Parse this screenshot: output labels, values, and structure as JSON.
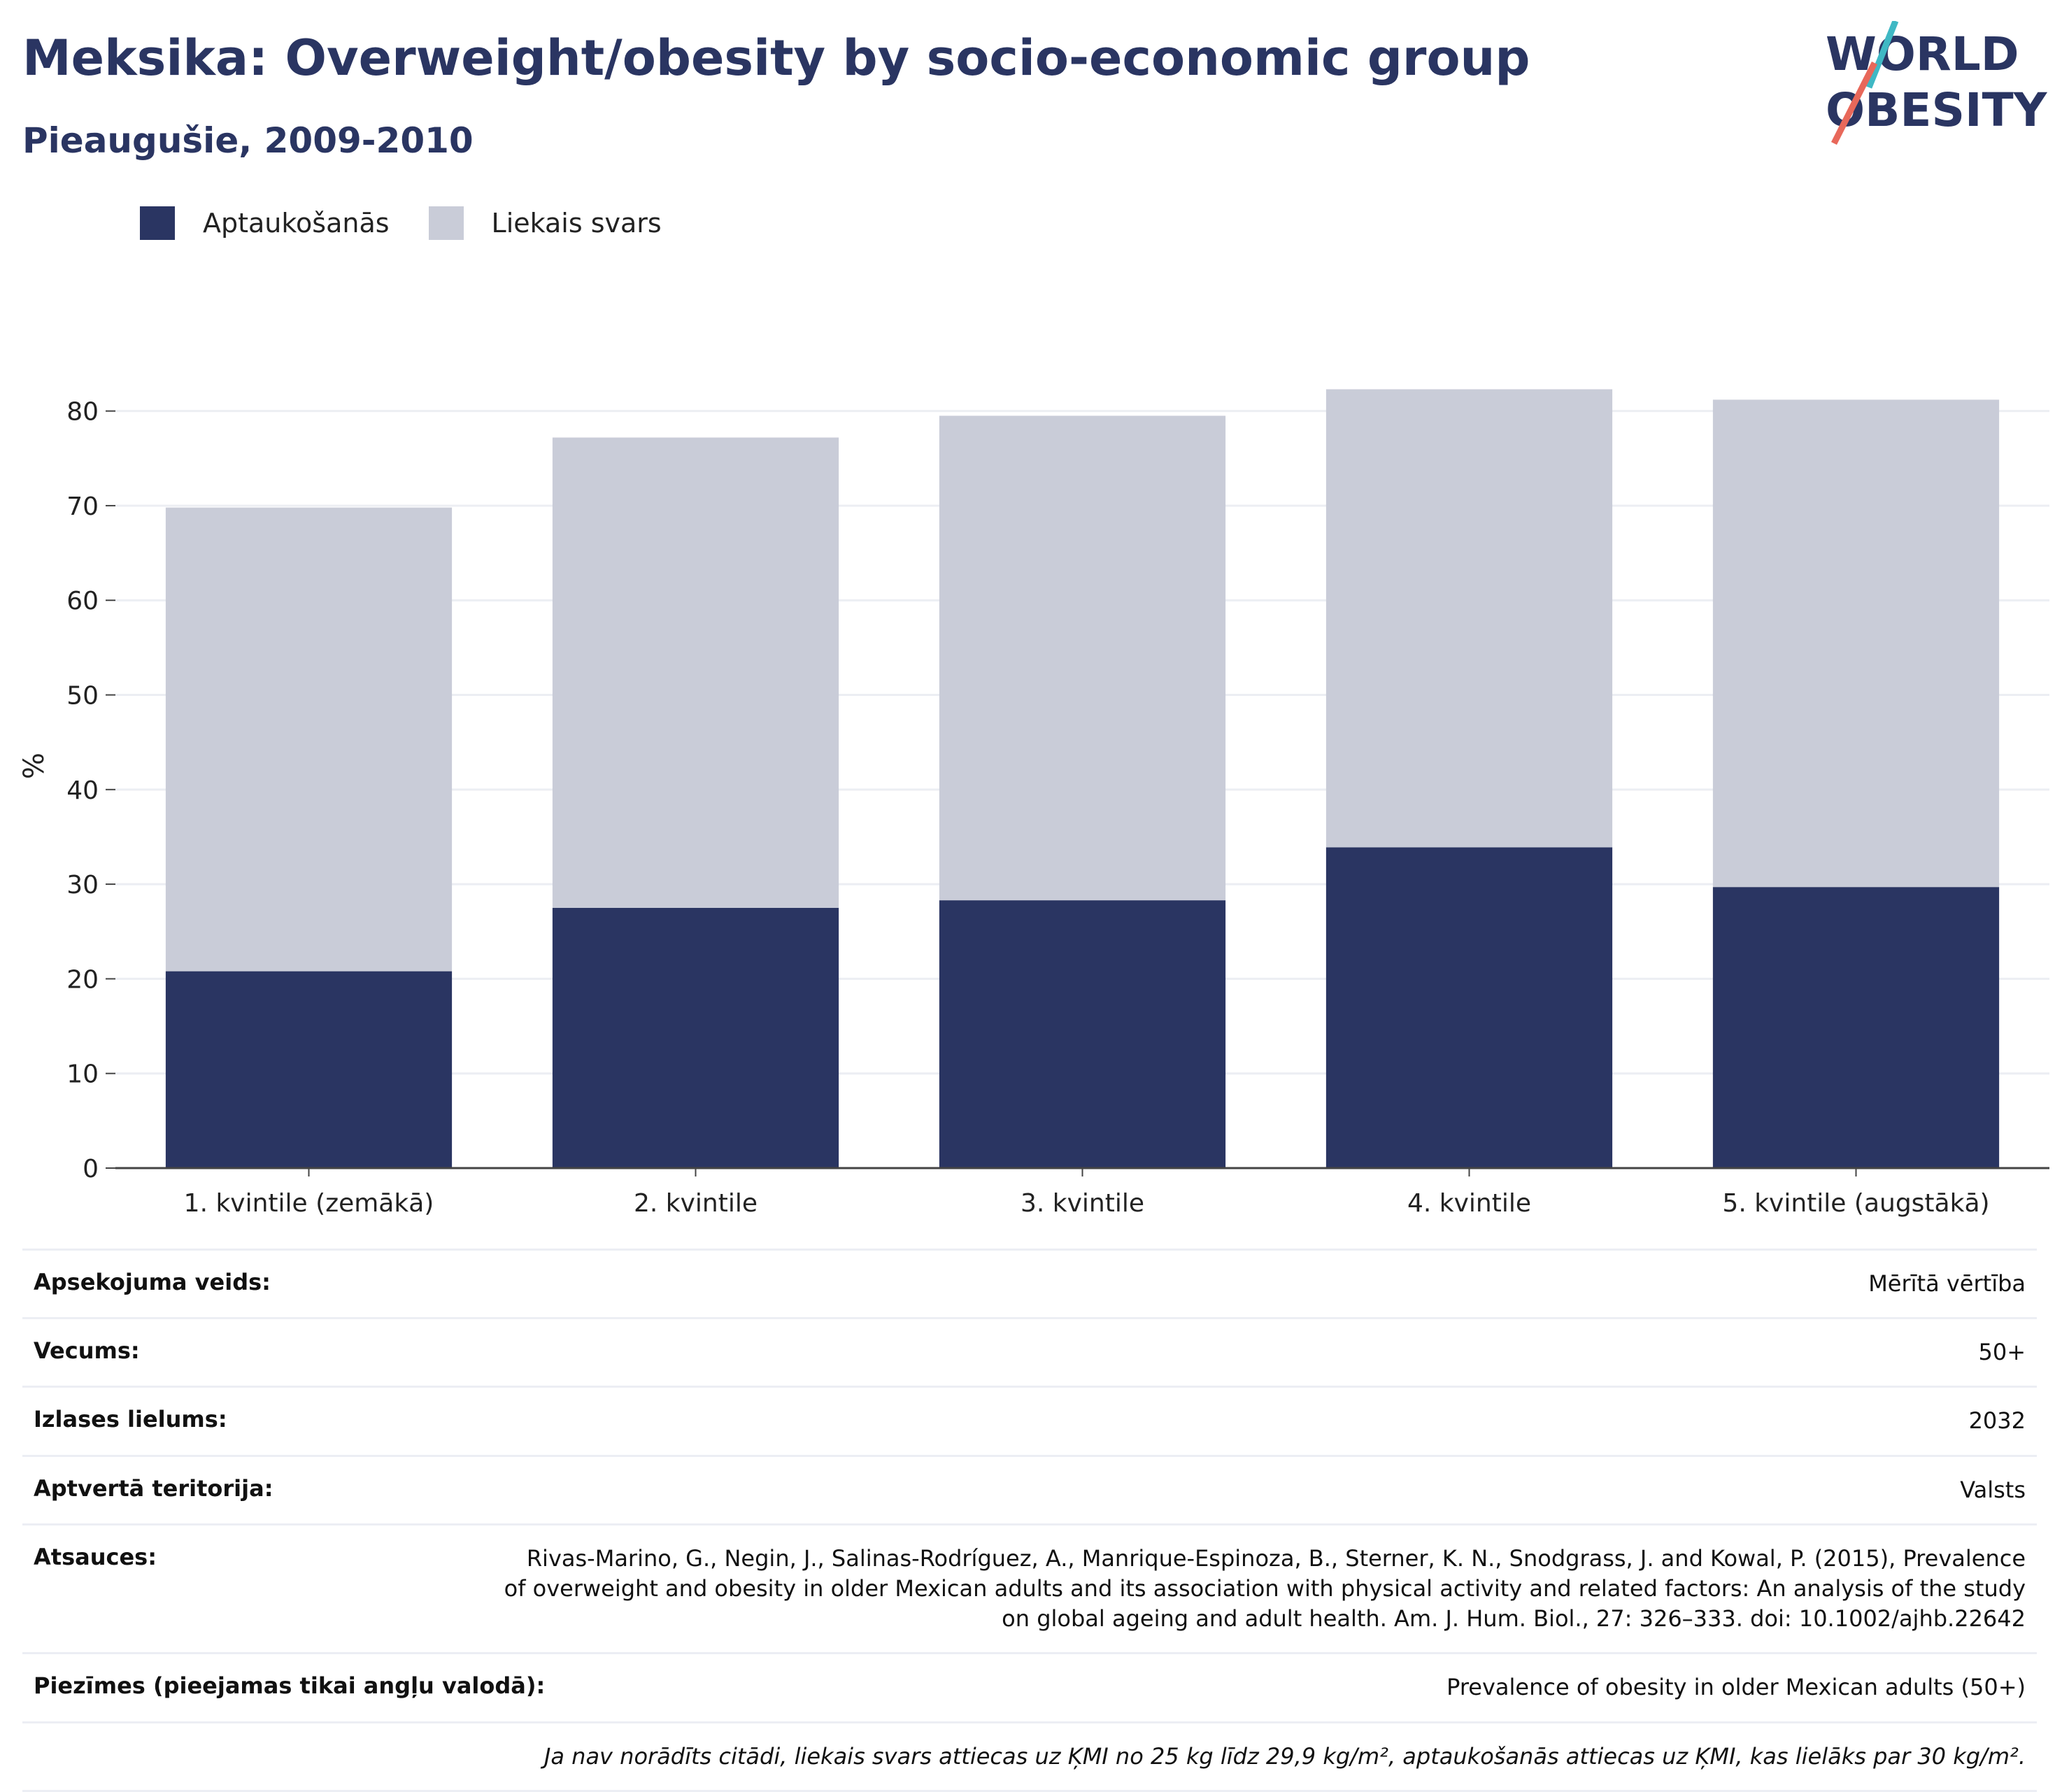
{
  "header": {
    "title": "Meksika: Overweight/obesity by socio-economic group",
    "subtitle": "Pieaugušie, 2009-2010"
  },
  "logo": {
    "line1": "WORLD",
    "line2": "OBESITY",
    "colors": {
      "text": "#2a3562",
      "accent_teal": "#3fb8c4",
      "accent_red": "#e8685a"
    }
  },
  "legend": {
    "items": [
      {
        "label": "Aptaukošanās",
        "color": "#2a3562"
      },
      {
        "label": "Liekais svars",
        "color": "#c9ccd8"
      }
    ]
  },
  "chart_data": {
    "type": "bar",
    "stacked": true,
    "categories": [
      "1. kvintile (zemākā)",
      "2. kvintile",
      "3. kvintile",
      "4. kvintile",
      "5. kvintile (augstākā)"
    ],
    "series": [
      {
        "name": "Aptaukošanās",
        "values": [
          20.8,
          27.5,
          28.3,
          33.9,
          29.7
        ],
        "color": "#2a3562"
      },
      {
        "name": "Liekais svars",
        "values": [
          49.0,
          49.7,
          51.2,
          48.4,
          51.5
        ],
        "color": "#c9ccd8"
      }
    ],
    "ylabel": "%",
    "ylim": [
      0,
      85
    ],
    "yticks": [
      0,
      10,
      20,
      30,
      40,
      50,
      60,
      70,
      80
    ],
    "grid": true,
    "legend_position": "top-left"
  },
  "info": {
    "rows": [
      {
        "label": "Apsekojuma veids:",
        "value": "Mērītā vērtība"
      },
      {
        "label": "Vecums:",
        "value": "50+"
      },
      {
        "label": "Izlases lielums:",
        "value": "2032"
      },
      {
        "label": "Aptvertā teritorija:",
        "value": "Valsts"
      },
      {
        "label": "Atsauces:",
        "value": "Rivas-Marino, G., Negin, J., Salinas-Rodríguez, A., Manrique-Espinoza, B., Sterner, K. N., Snodgrass, J. and Kowal, P. (2015), Prevalence of overweight and obesity in older Mexican adults and its association with physical activity and related factors: An analysis of the study on global ageing and adult health. Am. J. Hum. Biol., 27: 326–333. doi: 10.1002/ajhb.22642"
      },
      {
        "label": "Piezīmes (pieejamas tikai angļu valodā):",
        "value": "Prevalence of obesity in older Mexican adults (50+)"
      }
    ],
    "footnote": "Ja nav norādīts citādi, liekais svars attiecas uz ĶMI no 25 kg līdz 29,9 kg/m², aptaukošanās attiecas uz ĶMI, kas lielāks par 30 kg/m²."
  }
}
